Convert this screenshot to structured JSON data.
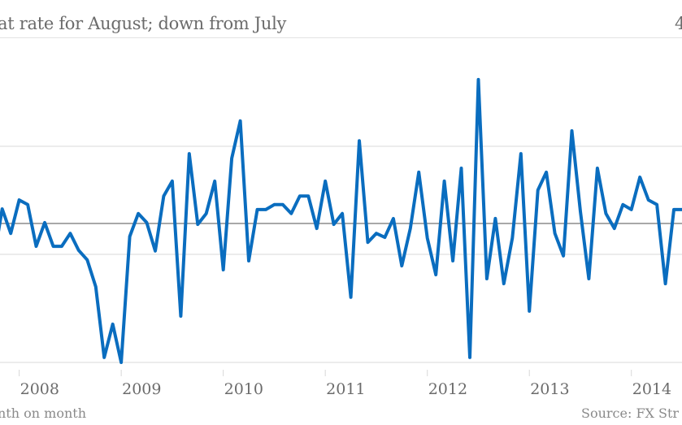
{
  "header": {
    "title": "at rate for August; down from July",
    "title_right": "4"
  },
  "footer": {
    "note": "nth on month",
    "source": "Source: FX Str"
  },
  "colors": {
    "line": "#0a6dbf",
    "grid": "#e6e6e6",
    "zero": "#8c8c8c",
    "text": "#6b6b6b"
  },
  "chart_data": {
    "type": "line",
    "title": "at rate for August; down from July",
    "xlabel": "",
    "ylabel": "month on month",
    "x_start": "2007-10",
    "x_step": "month",
    "x_tick_labels": [
      "2008",
      "2009",
      "2010",
      "2011",
      "2012",
      "2013",
      "2014"
    ],
    "gridlines": [
      2.5,
      0,
      -1,
      -4.5
    ],
    "ylim": [
      -4.6,
      4.9
    ],
    "series": [
      {
        "name": "month on month",
        "values": [
          -1.18,
          0.47,
          -0.32,
          0.76,
          0.61,
          -0.74,
          0.03,
          -0.74,
          -0.74,
          -0.32,
          -0.87,
          -1.18,
          -2.05,
          -4.34,
          -3.26,
          -4.5,
          -0.42,
          0.32,
          0.03,
          -0.89,
          0.89,
          1.37,
          -3.0,
          2.26,
          -0.03,
          0.32,
          1.37,
          -1.5,
          2.11,
          3.32,
          -1.21,
          0.45,
          0.45,
          0.61,
          0.61,
          0.32,
          0.89,
          0.89,
          -0.16,
          1.37,
          -0.03,
          0.32,
          -2.39,
          2.68,
          -0.61,
          -0.32,
          -0.45,
          0.16,
          -1.37,
          -0.16,
          1.66,
          -0.47,
          -1.66,
          1.37,
          -1.21,
          1.79,
          -4.34,
          4.66,
          -1.79,
          0.16,
          -1.95,
          -0.47,
          2.26,
          -2.84,
          1.08,
          1.66,
          -0.32,
          -1.05,
          3.0,
          0.39,
          -1.79,
          1.79,
          0.32,
          -0.16,
          0.61,
          0.45,
          1.5,
          0.76,
          0.61,
          -1.95,
          0.45,
          0.45
        ]
      }
    ],
    "source": "Source: FX Str"
  }
}
